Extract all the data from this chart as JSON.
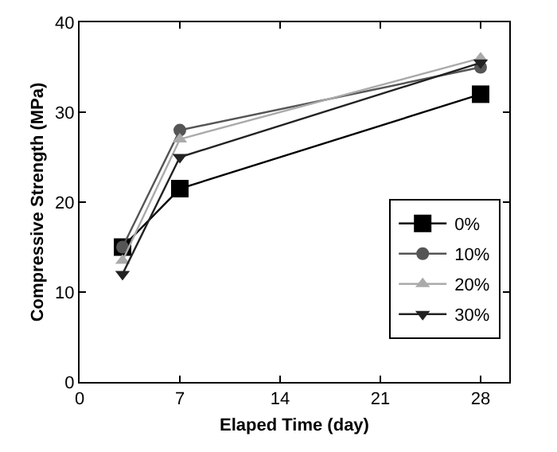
{
  "chart_data": {
    "type": "line",
    "xlabel": "Elaped Time (day)",
    "ylabel": "Compressive Strength (MPa)",
    "x": [
      3,
      7,
      28
    ],
    "series": [
      {
        "name": "0%",
        "color": "#000000",
        "marker": "square",
        "values": [
          15,
          21.5,
          32
        ]
      },
      {
        "name": "10%",
        "color": "#555555",
        "marker": "circle",
        "values": [
          15,
          28,
          35
        ]
      },
      {
        "name": "20%",
        "color": "#aaaaaa",
        "marker": "triangle",
        "values": [
          13.5,
          27,
          36
        ]
      },
      {
        "name": "30%",
        "color": "#222222",
        "marker": "triangle-down",
        "values": [
          12,
          25,
          35.5
        ]
      }
    ],
    "xlim": [
      0,
      30
    ],
    "xticks": [
      0,
      7,
      14,
      21,
      28
    ],
    "ylim": [
      0,
      40
    ],
    "yticks": [
      0,
      10,
      20,
      30,
      40
    ],
    "grid": false,
    "legend": "bottom right",
    "line_style": "solid"
  }
}
